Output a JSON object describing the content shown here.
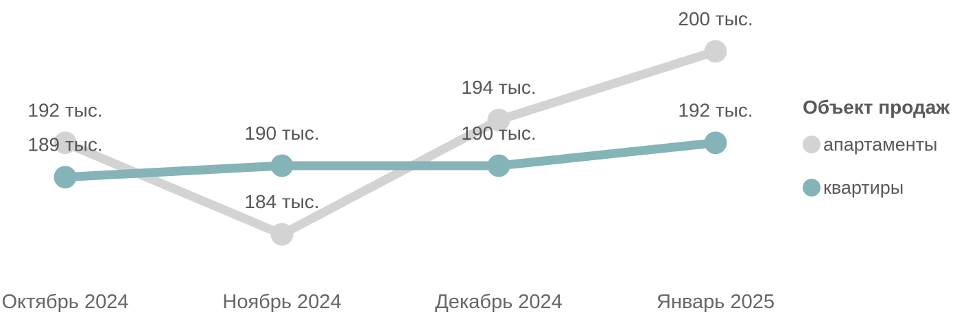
{
  "chart_data": {
    "type": "line",
    "categories": [
      "Октябрь 2024",
      "Ноябрь 2024",
      "Декабрь 2024",
      "Январь 2025"
    ],
    "series": [
      {
        "name": "апартаменты",
        "color": "#d3d3d3",
        "values": [
          192,
          184,
          194,
          200
        ],
        "labels": [
          "192 тыс.",
          "184 тыс.",
          "194 тыс.",
          "200 тыс."
        ]
      },
      {
        "name": "квартиры",
        "color": "#84b3b8",
        "values": [
          189,
          190,
          190,
          192
        ],
        "labels": [
          "189 тыс.",
          "190 тыс.",
          "190 тыс.",
          "192 тыс."
        ]
      }
    ],
    "unit": "тыс.",
    "ylim": [
      180,
      202
    ],
    "grid": false,
    "legend_position": "right",
    "legend_title": "Объект продаж"
  },
  "legend": {
    "title": "Объект продаж",
    "items": [
      {
        "label": "апартаменты",
        "color": "#d3d3d3"
      },
      {
        "label": "квартиры",
        "color": "#84b3b8"
      }
    ]
  },
  "colors": {
    "data_label_text": "#575757",
    "axis_text": "#666666",
    "legend_text": "#595959"
  }
}
